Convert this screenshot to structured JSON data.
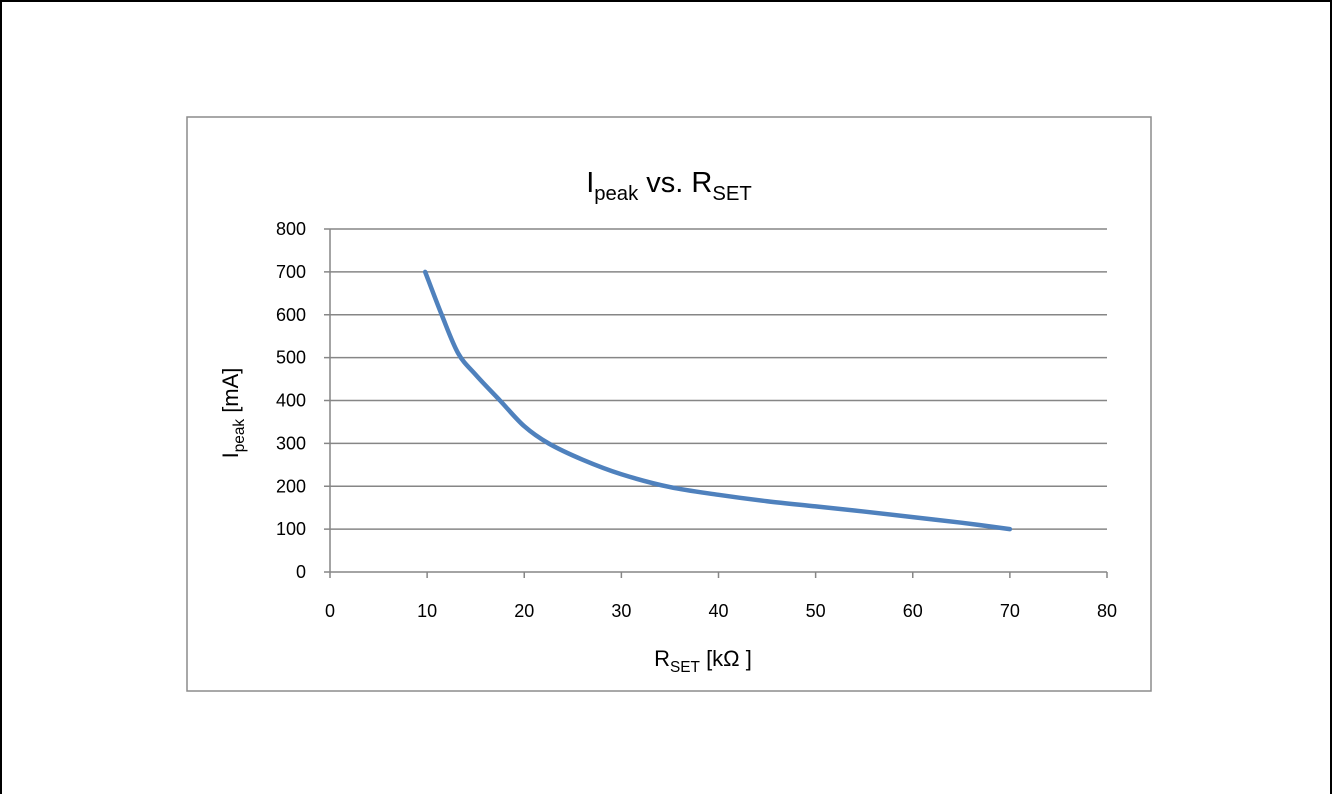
{
  "colors": {
    "series_line": "#4f81bd",
    "gridline": "#868686",
    "axis": "#868686",
    "chart_border": "#8c8c8c",
    "page_frame": "#000000",
    "text": "#000000"
  },
  "chart_data": {
    "type": "line",
    "title": {
      "main": "I",
      "main_sub": "peak",
      "middle": " vs. R",
      "tail_sub": "SET"
    },
    "ylabel": {
      "main": "I",
      "sub": "peak",
      "tail": " [mA]"
    },
    "xlabel": {
      "main": "R",
      "sub": "SET",
      "tail": " [kΩ ]"
    },
    "xlim": [
      0,
      80
    ],
    "ylim": [
      0,
      800
    ],
    "x_ticks": [
      "0",
      "10",
      "20",
      "30",
      "40",
      "50",
      "60",
      "70",
      "80"
    ],
    "y_ticks": [
      "0",
      "100",
      "200",
      "300",
      "400",
      "500",
      "600",
      "700",
      "800"
    ],
    "grid": true,
    "legend": "none",
    "series": [
      {
        "x": [
          9.8,
          11.5,
          13.2,
          15.0,
          17.5,
          20.0,
          22.5,
          26.0,
          30.0,
          35.0,
          40.0,
          45.0,
          50.0,
          55.0,
          60.0,
          65.0,
          70.0
        ],
        "values": [
          700,
          600,
          510,
          460,
          400,
          340,
          300,
          262,
          228,
          198,
          180,
          165,
          153,
          141,
          128,
          115,
          100
        ]
      }
    ]
  }
}
